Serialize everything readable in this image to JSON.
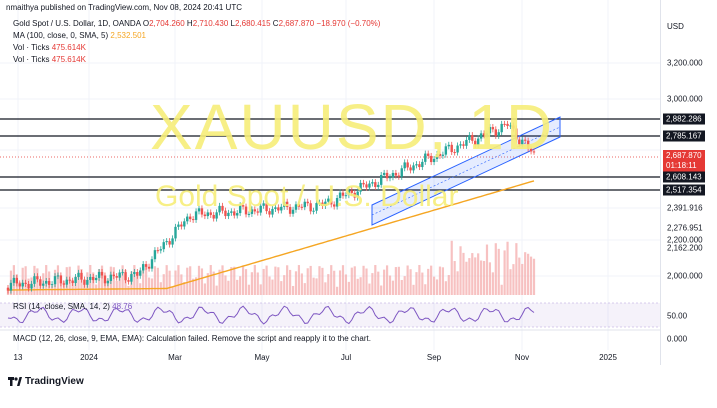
{
  "header": {
    "published": "nmaithya published on TradingView.com, Nov 08, 2024 20:41 UTC",
    "symbol_line": "Gold Spot / U.S. Dollar, 1D, OANDA",
    "o_label": "O",
    "o": "2,704.260",
    "h_label": "H",
    "h": "2,710.430",
    "l_label": "L",
    "l": "2,680.415",
    "c_label": "C",
    "c": "2,687.870",
    "change": "−18.970 (−0.70%)",
    "ma_label": "MA (100, close, 0, SMA, 5)",
    "ma_value": "2,532.501",
    "vol1_label": "Vol · Ticks",
    "vol1_value": "475.614K",
    "vol2_label": "Vol · Ticks",
    "vol2_value": "475.614K"
  },
  "watermark": {
    "symbol": "XAUUSD, 1D",
    "name": "Gold Spot / U.S. Dollar"
  },
  "yaxis": {
    "currency": "USD",
    "labels": [
      "3,200.000",
      "3,000.000",
      "2,391.916",
      "2,276.951",
      "2,200.000",
      "2,162.200",
      "2,000.000",
      "50.00",
      "0.000"
    ],
    "tags": {
      "l1": "2,882.286",
      "l2": "2,785.167",
      "price": "2,687.870",
      "countdown": "01:18:11",
      "l3": "2,608.143",
      "l4": "2,517.354"
    }
  },
  "xaxis": {
    "labels": [
      "13",
      "2024",
      "Mar",
      "May",
      "Jul",
      "Sep",
      "Nov",
      "2025"
    ]
  },
  "rsi": {
    "label": "RSI (14, close, SMA, 14, 2)",
    "value": "48.76"
  },
  "macd": {
    "label": "MACD (12, 26, close, 9, EMA, EMA): Calculation failed. Remove the script and reapply it to the chart."
  },
  "footer": {
    "brand": "TradingView"
  },
  "colors": {
    "up": "#26a69a",
    "down": "#ef5350",
    "ma": "#f5a623",
    "channel": "#2962ff",
    "volume": "#f4a6a6"
  }
}
